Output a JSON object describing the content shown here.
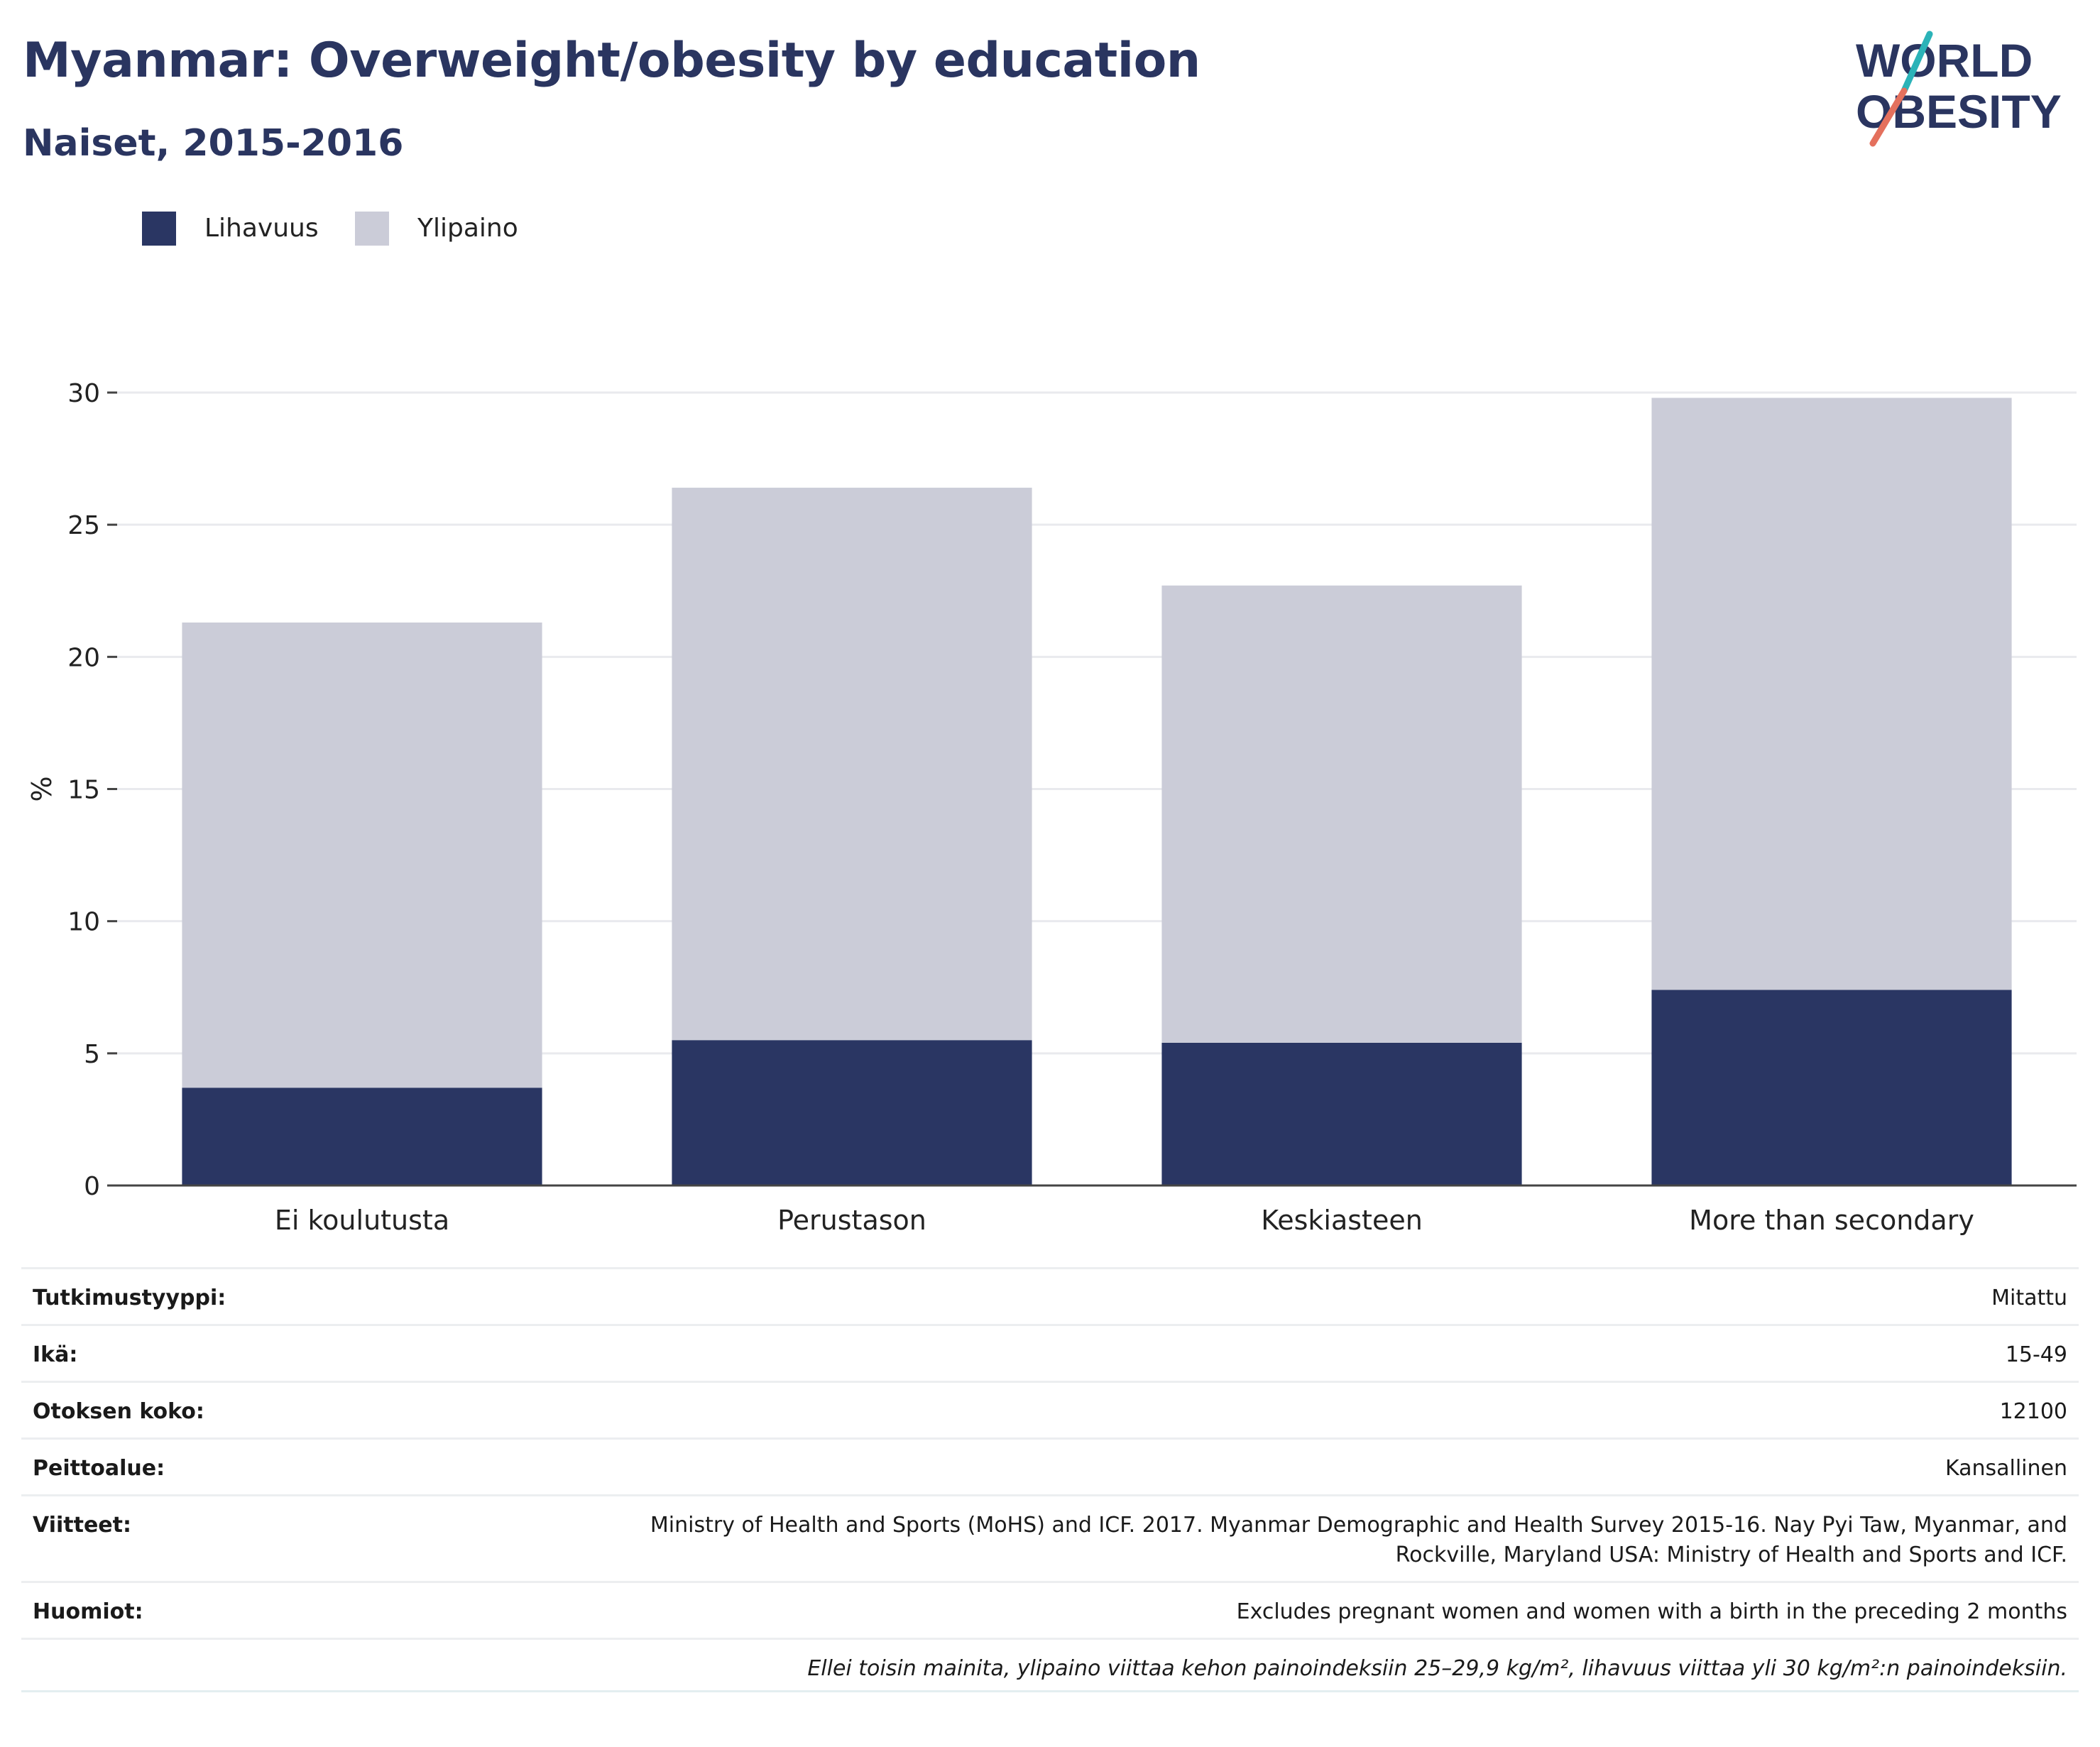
{
  "header": {
    "title": "Myanmar: Overweight/obesity by education",
    "subtitle": "Naiset, 2015-2016"
  },
  "logo": {
    "line1": "WORLD",
    "line2": "OBESITY"
  },
  "legend": [
    {
      "label": "Lihavuus",
      "color": "#2a3663"
    },
    {
      "label": "Ylipaino",
      "color": "#cbccd8"
    }
  ],
  "chart_data": {
    "type": "bar",
    "stacked": true,
    "categories": [
      "Ei koulutusta",
      "Perustason",
      "Keskiasteen",
      "More than secondary"
    ],
    "series": [
      {
        "name": "Lihavuus",
        "values": [
          3.7,
          5.5,
          5.4,
          7.4
        ],
        "color": "#2a3663"
      },
      {
        "name": "Ylipaino",
        "values": [
          17.6,
          20.9,
          17.3,
          22.4
        ],
        "color": "#cbccd8"
      }
    ],
    "ylabel": "%",
    "ylim": [
      0,
      30
    ],
    "yticks": [
      0,
      5,
      10,
      15,
      20,
      25,
      30
    ],
    "grid": true,
    "legend_position": "top-left"
  },
  "meta": {
    "rows": [
      {
        "key": "Tutkimustyyppi:",
        "value": "Mitattu"
      },
      {
        "key": "Ikä:",
        "value": "15-49"
      },
      {
        "key": "Otoksen koko:",
        "value": "12100"
      },
      {
        "key": "Peittoalue:",
        "value": "Kansallinen"
      },
      {
        "key": "Viitteet:",
        "value": "Ministry of Health and Sports (MoHS) and ICF. 2017. Myanmar Demographic and Health Survey 2015-16. Nay Pyi Taw, Myanmar, and Rockville, Maryland USA: Ministry of Health and Sports and ICF."
      },
      {
        "key": "Huomiot:",
        "value": "Excludes pregnant women and women with a birth in the preceding 2 months"
      }
    ],
    "note": "Ellei toisin mainita, ylipaino viittaa kehon painoindeksiin 25–29,9 kg/m², lihavuus viittaa yli 30 kg/m²:n painoindeksiin."
  }
}
